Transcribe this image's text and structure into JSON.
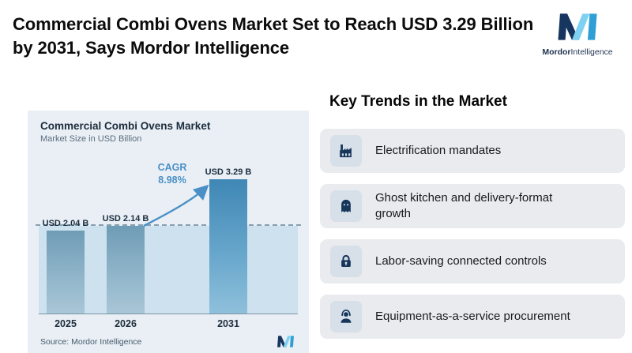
{
  "header": {
    "title": "Commercial Combi Ovens Market Set to Reach USD 3.29 Billion by 2031, Says Mordor Intelligence",
    "logo_bold": "Mordor",
    "logo_rest": "Intelligence"
  },
  "chart_data": {
    "type": "bar",
    "title": "Commercial Combi Ovens Market",
    "subtitle": "Market Size in USD Billion",
    "categories": [
      "2025",
      "2026",
      "2031"
    ],
    "values": [
      2.04,
      2.14,
      3.29
    ],
    "value_labels": [
      "USD 2.04 B",
      "USD 2.14 B",
      "USD 3.29 B"
    ],
    "cagr": {
      "label": "CAGR",
      "value": "8.98%"
    },
    "baseline_value": 2.14,
    "ylim": [
      0,
      3.6
    ],
    "source": "Source: Mordor Intelligence",
    "accent_color": "#4a90c6",
    "panel_background": "#e9eff5",
    "highlight_bar_color": "#3f87b5",
    "default_bar_color": "#6f9cb6",
    "legend": "none",
    "grid": "off"
  },
  "trends": {
    "heading": "Key Trends in the Market",
    "items": [
      {
        "icon": "factory-icon",
        "label": "Electrification mandates"
      },
      {
        "icon": "ghost-icon",
        "label": "Ghost kitchen and delivery-format growth"
      },
      {
        "icon": "lock-icon",
        "label": "Labor-saving connected controls"
      },
      {
        "icon": "service-icon",
        "label": "Equipment-as-a-service procurement"
      }
    ]
  }
}
